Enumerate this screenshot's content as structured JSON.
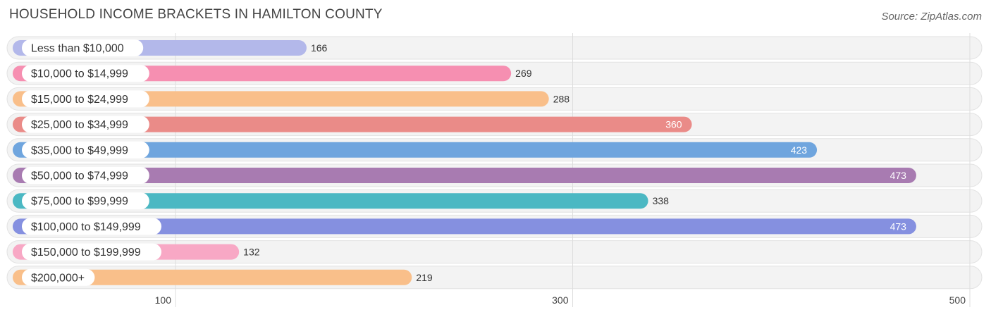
{
  "title": "HOUSEHOLD INCOME BRACKETS IN HAMILTON COUNTY",
  "source": "Source: ZipAtlas.com",
  "chart_data": {
    "type": "bar",
    "orientation": "horizontal",
    "title": "HOUSEHOLD INCOME BRACKETS IN HAMILTON COUNTY",
    "categories": [
      "Less than $10,000",
      "$10,000 to $14,999",
      "$15,000 to $24,999",
      "$25,000 to $34,999",
      "$35,000 to $49,999",
      "$50,000 to $74,999",
      "$75,000 to $99,999",
      "$100,000 to $149,999",
      "$150,000 to $199,999",
      "$200,000+"
    ],
    "values": [
      166,
      269,
      288,
      360,
      423,
      473,
      338,
      473,
      132,
      219
    ],
    "value_labels": [
      "166",
      "269",
      "288",
      "360",
      "423",
      "473",
      "338",
      "473",
      "132",
      "219"
    ],
    "colors": [
      "#b3b8ea",
      "#f68fb1",
      "#f9bf8a",
      "#ea8b88",
      "#6fa5de",
      "#a87bb1",
      "#4bb8c3",
      "#8590e0",
      "#f8a8c5",
      "#f9bf8a"
    ],
    "xticks": [
      100,
      300,
      500
    ],
    "xtick_labels": [
      "100",
      "300",
      "500"
    ],
    "grid": true
  }
}
